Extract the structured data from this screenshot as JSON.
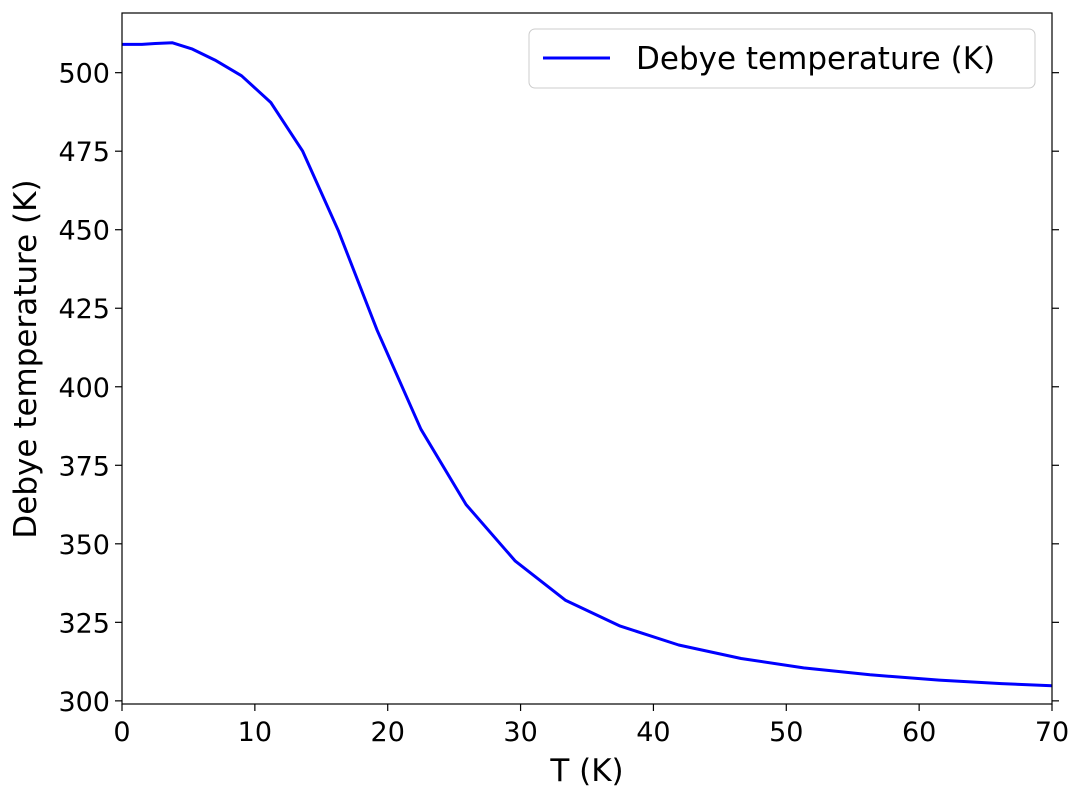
{
  "chart_data": {
    "type": "line",
    "xlabel": "T (K)",
    "ylabel": "Debye temperature (K)",
    "xlim": [
      0,
      70
    ],
    "ylim": [
      299,
      519
    ],
    "x_ticks": [
      0,
      10,
      20,
      30,
      40,
      50,
      60,
      70
    ],
    "y_ticks": [
      300,
      325,
      350,
      375,
      400,
      425,
      450,
      475,
      500
    ],
    "grid": false,
    "legend_position": "top-right",
    "series": [
      {
        "name": "Debye temperature (K)",
        "color": "#0000ff",
        "x": [
          0,
          1.5,
          2.5,
          3.8,
          5.3,
          7,
          9,
          11.2,
          13.6,
          16.3,
          19.2,
          22.5,
          25.9,
          29.6,
          33.4,
          37.5,
          41.9,
          46.6,
          51.3,
          56.3,
          61.5,
          66.2,
          70
        ],
        "y": [
          509,
          509,
          509.3,
          509.5,
          507.5,
          504,
          499,
          490.5,
          475,
          449.5,
          418,
          386.5,
          362.5,
          344.5,
          332,
          323.8,
          317.8,
          313.5,
          310.5,
          308.3,
          306.6,
          305.5,
          304.8
        ]
      }
    ]
  }
}
